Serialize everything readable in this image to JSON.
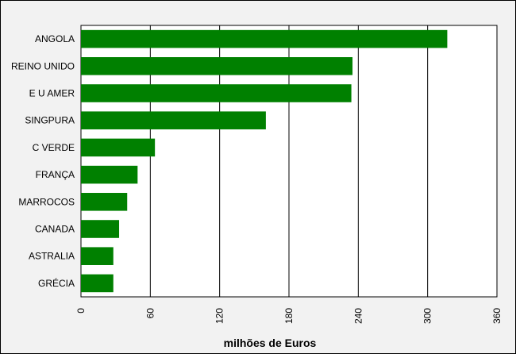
{
  "chart_data": {
    "type": "bar",
    "orientation": "horizontal",
    "categories": [
      "ANGOLA",
      "REINO UNIDO",
      "E U AMER",
      "SINGPURA",
      "C VERDE",
      "FRANÇA",
      "MARROCOS",
      "CANADA",
      "ASTRALIA",
      "GRÉCIA"
    ],
    "values": [
      317,
      235,
      234,
      160,
      64,
      49,
      40,
      33,
      28,
      28
    ],
    "xlabel": "milhões de Euros",
    "xlim": [
      0,
      360
    ],
    "xticks": [
      "0",
      "60",
      "120",
      "180",
      "240",
      "300",
      "360"
    ],
    "grid": true,
    "bar_color": "#008000",
    "plot_background": "#ffffff",
    "outer_background": "#f2f2f2"
  }
}
